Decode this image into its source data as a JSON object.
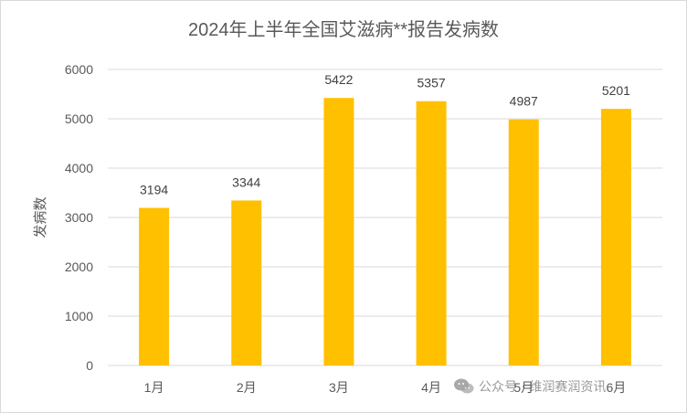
{
  "chart_data": {
    "type": "bar",
    "title": "2024年上半年全国艾滋病**报告发病数",
    "xlabel": "",
    "ylabel": "发病数",
    "categories": [
      "1月",
      "2月",
      "3月",
      "4月",
      "5月",
      "6月"
    ],
    "values": [
      3194,
      3344,
      5422,
      5357,
      4987,
      5201
    ],
    "data_labels": [
      "3194",
      "3344",
      "5422",
      "5357",
      "4987",
      "5201"
    ],
    "ylim": [
      0,
      6000
    ],
    "yticks": [
      "0",
      "1000",
      "2000",
      "3000",
      "4000",
      "5000",
      "6000"
    ],
    "grid": true,
    "legend": "none",
    "bar_color": "#FFC000"
  },
  "watermark": {
    "icon": "wechat-icon",
    "text": "公众号 · 维润赛润资讯"
  }
}
